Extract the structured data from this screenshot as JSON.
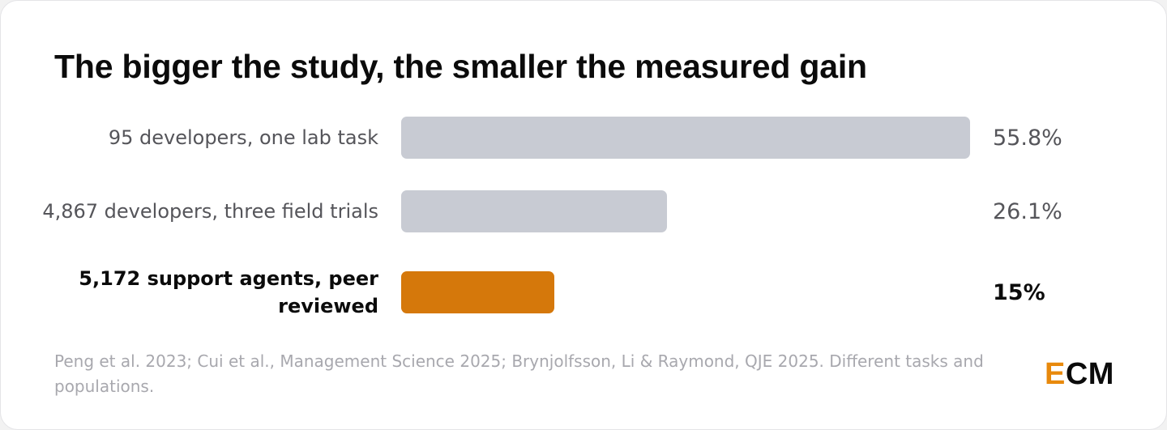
{
  "chart_data": {
    "type": "bar",
    "orientation": "horizontal",
    "title": "The bigger the study, the smaller the measured gain",
    "categories": [
      "95 developers, one lab task",
      "4,867 developers, three field trials",
      "5,172 support agents, peer reviewed"
    ],
    "values": [
      55.8,
      26.1,
      15
    ],
    "value_labels": [
      "55.8%",
      "26.1%",
      "15%"
    ],
    "highlight_index": 2,
    "xlim": [
      0,
      55.8
    ],
    "grid": false,
    "colors": {
      "default": "#c8cbd3",
      "highlight": "#d5780b"
    }
  },
  "source": "Peng et al. 2023; Cui et al., Management Science 2025; Brynjolfsson, Li & Raymond, QJE 2025. Different tasks and populations.",
  "logo": {
    "first": "E",
    "rest": "CM"
  }
}
